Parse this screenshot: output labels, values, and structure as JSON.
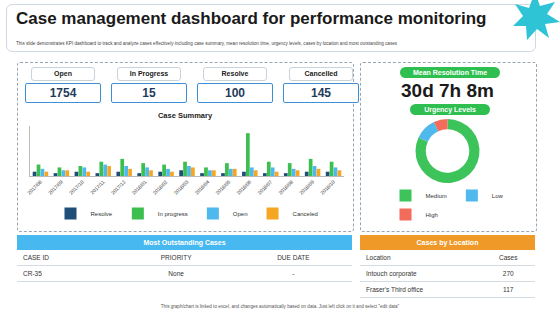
{
  "header": {
    "title": "Case management dashboard for performance monitoring",
    "subtitle": "This slide demonstrates KPI dashboard to track and analyze cases effectively including case summary, mean resolution time, urgency levels, cases by location and most outstanding cases"
  },
  "kpis": [
    {
      "label": "Open",
      "value": "1754"
    },
    {
      "label": "In Progress",
      "value": "15"
    },
    {
      "label": "Resolve",
      "value": "100"
    },
    {
      "label": "Cancelled",
      "value": "145"
    }
  ],
  "mean_resolution": {
    "label": "Mean Resolution Time",
    "value": "30d 7h 8m"
  },
  "chart_data": [
    {
      "type": "bar",
      "title": "Case Summary",
      "categories": [
        "2017/08",
        "2017/09",
        "2017/10",
        "2017/11",
        "2017/12",
        "2018/01",
        "2018/02",
        "2018/03",
        "2018/04",
        "2018/05",
        "2018/06",
        "2018/07",
        "2018/08",
        "2018/09",
        "2018/10"
      ],
      "series": [
        {
          "name": "Resolve",
          "color": "#1f4e79",
          "values": [
            3,
            2,
            3,
            2,
            3,
            2,
            3,
            4,
            2,
            2,
            3,
            2,
            2,
            3,
            3
          ]
        },
        {
          "name": "In progress",
          "color": "#3cbf4f",
          "values": [
            8,
            6,
            7,
            10,
            12,
            9,
            8,
            10,
            6,
            9,
            30,
            10,
            9,
            12,
            10
          ]
        },
        {
          "name": "Open",
          "color": "#4fb8ec",
          "values": [
            5,
            4,
            6,
            8,
            7,
            6,
            5,
            7,
            4,
            5,
            6,
            6,
            5,
            7,
            6
          ]
        },
        {
          "name": "Canceled",
          "color": "#f5a623",
          "values": [
            3,
            4,
            3,
            7,
            5,
            4,
            3,
            6,
            4,
            5,
            4,
            3,
            4,
            5,
            4
          ]
        }
      ],
      "ylim": [
        0,
        35
      ],
      "tick_labels": "x",
      "grid": false,
      "legend": "bottom"
    },
    {
      "type": "pie",
      "title": "Urgency Levels",
      "categories": [
        "Medium",
        "Low",
        "High"
      ],
      "values": [
        82,
        11,
        7
      ],
      "colors": [
        "#3cc45a",
        "#4fb8ec",
        "#f26b5b"
      ],
      "legend": "bottom"
    }
  ],
  "outstanding": {
    "title": "Most Outstanding Cases",
    "columns": [
      "CASE ID",
      "PRIORITY",
      "DUE DATE"
    ],
    "rows": [
      [
        "CR-35",
        "None",
        "-"
      ]
    ]
  },
  "by_location": {
    "title": "Cases by Location",
    "columns": [
      "Location",
      "Cases"
    ],
    "rows": [
      [
        "Intouch corporate",
        "270"
      ],
      [
        "Fraser's Third office",
        "117"
      ]
    ]
  },
  "footer": "This graph/chart is linked to excel, and changes automatically based on data. Just left click on it and select \"edit data\""
}
